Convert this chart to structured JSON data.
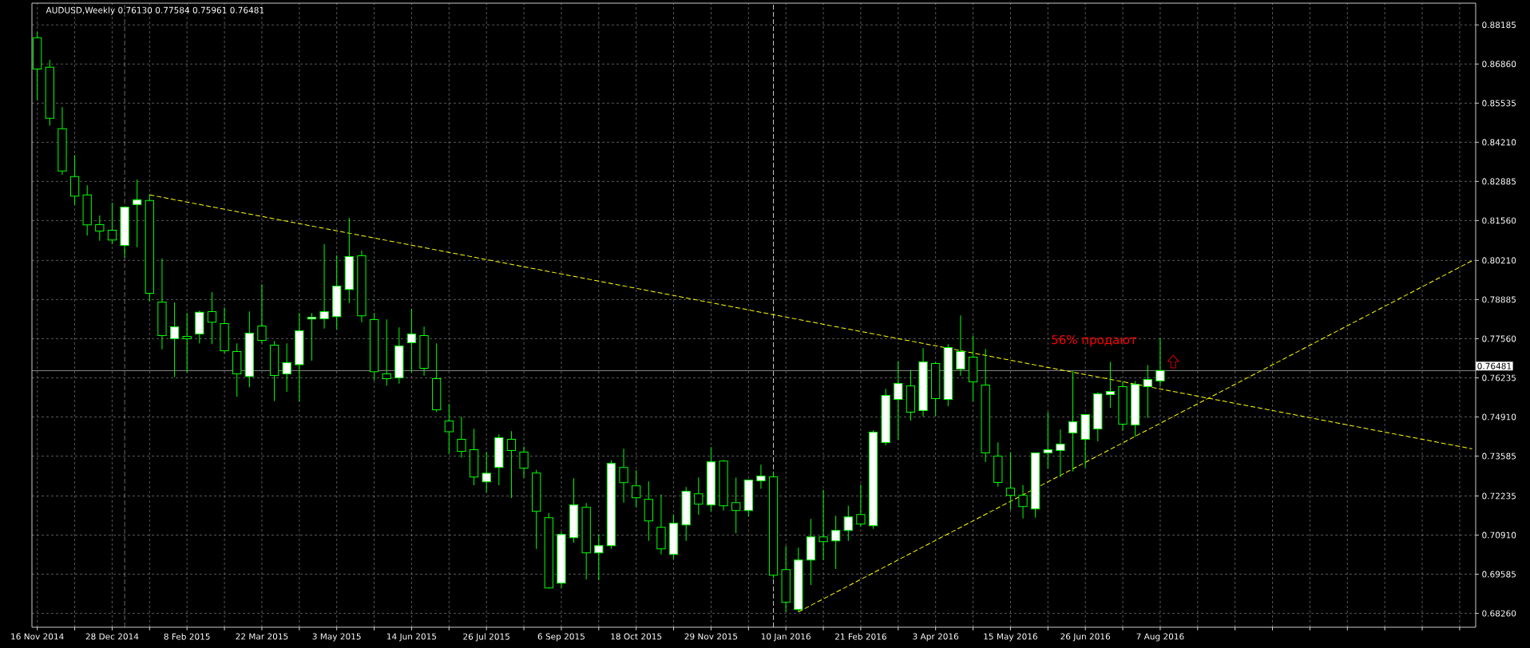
{
  "chart_data": {
    "type": "candlestick",
    "title": "AUDUSD,Weekly 0.76130 0.77584 0.75961 0.76481",
    "color": "#00ff00",
    "x": [
      "2014-11-16",
      "2014-11-23",
      "2014-11-30",
      "2014-12-07",
      "2014-12-14",
      "2014-12-21",
      "2014-12-28",
      "2015-01-04",
      "2015-01-11",
      "2015-01-18",
      "2015-01-25",
      "2015-02-01",
      "2015-02-08",
      "2015-02-15",
      "2015-02-22",
      "2015-03-01",
      "2015-03-08",
      "2015-03-15",
      "2015-03-22",
      "2015-03-29",
      "2015-04-05",
      "2015-04-12",
      "2015-04-19",
      "2015-04-26",
      "2015-05-03",
      "2015-05-10",
      "2015-05-17",
      "2015-05-24",
      "2015-05-31",
      "2015-06-07",
      "2015-06-14",
      "2015-06-21",
      "2015-06-28",
      "2015-07-05",
      "2015-07-12",
      "2015-07-19",
      "2015-07-26",
      "2015-08-02",
      "2015-08-09",
      "2015-08-16",
      "2015-08-23",
      "2015-08-30",
      "2015-09-06",
      "2015-09-13",
      "2015-09-20",
      "2015-09-27",
      "2015-10-04",
      "2015-10-11",
      "2015-10-18",
      "2015-10-25",
      "2015-11-01",
      "2015-11-08",
      "2015-11-15",
      "2015-11-22",
      "2015-11-29",
      "2015-12-06",
      "2015-12-13",
      "2015-12-20",
      "2015-12-27",
      "2016-01-03",
      "2016-01-10",
      "2016-01-17",
      "2016-01-24",
      "2016-01-31",
      "2016-02-07",
      "2016-02-14",
      "2016-02-21",
      "2016-02-28",
      "2016-03-06",
      "2016-03-13",
      "2016-03-20",
      "2016-03-27",
      "2016-04-03",
      "2016-04-10",
      "2016-04-17",
      "2016-04-24",
      "2016-05-01",
      "2016-05-08",
      "2016-05-15",
      "2016-05-22",
      "2016-05-29",
      "2016-06-05",
      "2016-06-12",
      "2016-06-19",
      "2016-06-26",
      "2016-07-03",
      "2016-07-10",
      "2016-07-17",
      "2016-07-24",
      "2016-07-31",
      "2016-08-07"
    ],
    "ohlc": [
      [
        0.87752,
        0.87951,
        0.85634,
        0.86689
      ],
      [
        0.86752,
        0.87004,
        0.84769,
        0.85021
      ],
      [
        0.8467,
        0.854,
        0.8311,
        0.83236
      ],
      [
        0.83047,
        0.83777,
        0.82091,
        0.82389
      ],
      [
        0.82425,
        0.8275,
        0.81055,
        0.81416
      ],
      [
        0.81425,
        0.81731,
        0.80875,
        0.81208
      ],
      [
        0.81235,
        0.82164,
        0.80758,
        0.80902
      ],
      [
        0.80721,
        0.82019,
        0.80307,
        0.82019
      ],
      [
        0.82101,
        0.82948,
        0.80658,
        0.82263
      ],
      [
        0.82236,
        0.82452,
        0.7882,
        0.79099
      ],
      [
        0.78802,
        0.80271,
        0.77197,
        0.77666
      ],
      [
        0.77558,
        0.78784,
        0.76259,
        0.77963
      ],
      [
        0.77639,
        0.78432,
        0.76413,
        0.77558
      ],
      [
        0.7772,
        0.78513,
        0.77404,
        0.78459
      ],
      [
        0.78477,
        0.79135,
        0.77378,
        0.78116
      ],
      [
        0.78071,
        0.78621,
        0.77062,
        0.77152
      ],
      [
        0.77125,
        0.77404,
        0.75601,
        0.76368
      ],
      [
        0.76278,
        0.78486,
        0.75917,
        0.77747
      ],
      [
        0.7799,
        0.79405,
        0.77404,
        0.77503
      ],
      [
        0.77341,
        0.77485,
        0.7545,
        0.76313
      ],
      [
        0.76368,
        0.77405,
        0.75764,
        0.76746
      ],
      [
        0.76683,
        0.78432,
        0.75439,
        0.77828
      ],
      [
        0.78225,
        0.78432,
        0.76818,
        0.78288
      ],
      [
        0.78234,
        0.80758,
        0.779,
        0.78477
      ],
      [
        0.78306,
        0.80379,
        0.77873,
        0.79343
      ],
      [
        0.79225,
        0.8165,
        0.78766,
        0.80343
      ],
      [
        0.8037,
        0.80541,
        0.78117,
        0.78333
      ],
      [
        0.78207,
        0.78432,
        0.76143,
        0.7644
      ],
      [
        0.76368,
        0.78216,
        0.75971,
        0.76206
      ],
      [
        0.76233,
        0.77945,
        0.76035,
        0.77314
      ],
      [
        0.77423,
        0.78576,
        0.76413,
        0.7772
      ],
      [
        0.77666,
        0.77972,
        0.76305,
        0.76557
      ],
      [
        0.76206,
        0.77405,
        0.75088,
        0.75151
      ],
      [
        0.74772,
        0.75349,
        0.73664,
        0.74412
      ],
      [
        0.7415,
        0.74917,
        0.73529,
        0.73745
      ],
      [
        0.73799,
        0.74511,
        0.726,
        0.72879
      ],
      [
        0.72717,
        0.73727,
        0.72357,
        0.73006
      ],
      [
        0.73204,
        0.74322,
        0.726,
        0.74204
      ],
      [
        0.7415,
        0.7443,
        0.72167,
        0.73772
      ],
      [
        0.73718,
        0.73907,
        0.72852,
        0.73177
      ],
      [
        0.73015,
        0.73123,
        0.70446,
        0.71717
      ],
      [
        0.71501,
        0.71663,
        0.691,
        0.69121
      ],
      [
        0.69283,
        0.71023,
        0.6913,
        0.70932
      ],
      [
        0.70824,
        0.72835,
        0.70653,
        0.71933
      ],
      [
        0.71852,
        0.71996,
        0.69409,
        0.70311
      ],
      [
        0.70311,
        0.70932,
        0.69382,
        0.70554
      ],
      [
        0.70554,
        0.73447,
        0.70446,
        0.73339
      ],
      [
        0.73204,
        0.73835,
        0.72014,
        0.7269
      ],
      [
        0.72582,
        0.73105,
        0.71852,
        0.72177
      ],
      [
        0.72123,
        0.72727,
        0.70716,
        0.71392
      ],
      [
        0.71176,
        0.72285,
        0.70257,
        0.70446
      ],
      [
        0.70257,
        0.71609,
        0.70094,
        0.71311
      ],
      [
        0.71257,
        0.72537,
        0.70716,
        0.72393
      ],
      [
        0.72312,
        0.72862,
        0.716,
        0.7196
      ],
      [
        0.71933,
        0.73889,
        0.71717,
        0.73393
      ],
      [
        0.7342,
        0.73456,
        0.71744,
        0.71906
      ],
      [
        0.72014,
        0.72853,
        0.70969,
        0.71744
      ],
      [
        0.71744,
        0.72772,
        0.71546,
        0.72772
      ],
      [
        0.72745,
        0.73295,
        0.72475,
        0.72907
      ],
      [
        0.7288,
        0.73042,
        0.6945,
        0.69554
      ],
      [
        0.69743,
        0.70536,
        0.6831,
        0.68634
      ],
      [
        0.68391,
        0.70482,
        0.6831,
        0.70068
      ],
      [
        0.70068,
        0.71456,
        0.6922,
        0.70852
      ],
      [
        0.70852,
        0.72447,
        0.70068,
        0.7069
      ],
      [
        0.70716,
        0.71564,
        0.69761,
        0.71068
      ],
      [
        0.71068,
        0.71906,
        0.70716,
        0.71528
      ],
      [
        0.71609,
        0.72618,
        0.71203,
        0.71284
      ],
      [
        0.7123,
        0.74457,
        0.71122,
        0.74394
      ],
      [
        0.74043,
        0.75863,
        0.73952,
        0.75638
      ],
      [
        0.75503,
        0.76801,
        0.74142,
        0.76044
      ],
      [
        0.75963,
        0.76503,
        0.74791,
        0.7507
      ],
      [
        0.75124,
        0.77242,
        0.74926,
        0.76774
      ],
      [
        0.7672,
        0.76774,
        0.74935,
        0.7553
      ],
      [
        0.75503,
        0.77378,
        0.75277,
        0.7726
      ],
      [
        0.7653,
        0.78351,
        0.76305,
        0.77125
      ],
      [
        0.76936,
        0.77666,
        0.7544,
        0.76098
      ],
      [
        0.75989,
        0.77215,
        0.73385,
        0.73691
      ],
      [
        0.73583,
        0.74051,
        0.72546,
        0.72691
      ],
      [
        0.72501,
        0.73718,
        0.71771,
        0.72258
      ],
      [
        0.72258,
        0.72609,
        0.71474,
        0.71879
      ],
      [
        0.71798,
        0.73691,
        0.71501,
        0.73691
      ],
      [
        0.73691,
        0.75079,
        0.73168,
        0.73799
      ],
      [
        0.73772,
        0.74484,
        0.72871,
        0.73988
      ],
      [
        0.74367,
        0.76476,
        0.73069,
        0.74746
      ],
      [
        0.74151,
        0.74989,
        0.73204,
        0.74989
      ],
      [
        0.74502,
        0.75746,
        0.74088,
        0.75692
      ],
      [
        0.75665,
        0.76774,
        0.75223,
        0.75773
      ],
      [
        0.75935,
        0.76098,
        0.74448,
        0.74664
      ],
      [
        0.74637,
        0.76125,
        0.74232,
        0.76017
      ],
      [
        0.75935,
        0.76666,
        0.74881,
        0.76179
      ],
      [
        0.7613,
        0.77584,
        0.75961,
        0.76481
      ]
    ],
    "series": [
      {
        "type": "line",
        "x": [
          "2015-01-18",
          "2017-01-29"
        ],
        "values": [
          0.8243,
          0.7383
        ],
        "color": "#ffff00",
        "line_style": "dashed"
      },
      {
        "type": "line",
        "x": [
          "2016-01-17",
          "2017-01-29"
        ],
        "values": [
          0.6831,
          0.802
        ],
        "color": "#ffff00",
        "line_style": "dashed"
      }
    ],
    "marker": "none",
    "xlim": [
      "2014-11-13",
      "2017-01-31"
    ],
    "ylim": [
      0.6779,
      0.8892
    ],
    "xticks": [
      {
        "value": "2014-11-16",
        "label": "16 Nov 2014"
      },
      {
        "value": "2014-12-07",
        "label": null
      },
      {
        "value": "2014-12-28",
        "label": "28 Dec 2014"
      },
      {
        "value": "2015-01-18",
        "label": null
      },
      {
        "value": "2015-02-08",
        "label": "8 Feb 2015"
      },
      {
        "value": "2015-03-01",
        "label": null
      },
      {
        "value": "2015-03-22",
        "label": "22 Mar 2015"
      },
      {
        "value": "2015-04-12",
        "label": null
      },
      {
        "value": "2015-05-03",
        "label": "3 May 2015"
      },
      {
        "value": "2015-05-24",
        "label": null
      },
      {
        "value": "2015-06-14",
        "label": "14 Jun 2015"
      },
      {
        "value": "2015-07-05",
        "label": null
      },
      {
        "value": "2015-07-26",
        "label": "26 Jul 2015"
      },
      {
        "value": "2015-08-16",
        "label": null
      },
      {
        "value": "2015-09-06",
        "label": "6 Sep 2015"
      },
      {
        "value": "2015-09-27",
        "label": null
      },
      {
        "value": "2015-10-18",
        "label": "18 Oct 2015"
      },
      {
        "value": "2015-11-08",
        "label": null
      },
      {
        "value": "2015-11-29",
        "label": "29 Nov 2015"
      },
      {
        "value": "2015-12-20",
        "label": null
      },
      {
        "value": "2016-01-10",
        "label": "10 Jan 2016"
      },
      {
        "value": "2016-01-31",
        "label": null
      },
      {
        "value": "2016-02-21",
        "label": "21 Feb 2016"
      },
      {
        "value": "2016-03-13",
        "label": null
      },
      {
        "value": "2016-04-03",
        "label": "3 Apr 2016"
      },
      {
        "value": "2016-04-24",
        "label": null
      },
      {
        "value": "2016-05-15",
        "label": "15 May 2016"
      },
      {
        "value": "2016-06-05",
        "label": null
      },
      {
        "value": "2016-06-26",
        "label": "26 Jun 2016"
      },
      {
        "value": "2016-07-17",
        "label": null
      },
      {
        "value": "2016-08-07",
        "label": "7 Aug 2016"
      },
      {
        "value": "2016-08-28",
        "label": null
      },
      {
        "value": "2016-09-18",
        "label": null
      },
      {
        "value": "2016-10-09",
        "label": null
      },
      {
        "value": "2016-10-30",
        "label": null
      },
      {
        "value": "2016-11-20",
        "label": null
      },
      {
        "value": "2016-12-11",
        "label": null
      },
      {
        "value": "2017-01-01",
        "label": null
      },
      {
        "value": "2017-01-22",
        "label": null
      }
    ],
    "yticks": [
      0.88185,
      {
        "value": 0.8686,
        "label": "0.86860"
      },
      0.85535,
      {
        "value": 0.8421,
        "label": "0.84210"
      },
      0.82885,
      {
        "value": 0.8156,
        "label": "0.81560"
      },
      {
        "value": 0.8021,
        "label": "0.80210"
      },
      0.78885,
      {
        "value": 0.7756,
        "label": "0.77560"
      },
      0.76235,
      {
        "value": 0.7491,
        "label": "0.74910"
      },
      0.73585,
      0.72235,
      {
        "value": 0.7091,
        "label": "0.70910"
      },
      0.69585,
      {
        "value": 0.6826,
        "label": "0.68260"
      }
    ],
    "grid": true,
    "ref_lines": [
      {
        "axis": "y",
        "value": 0.76481,
        "label": "0.76481",
        "color": "#c0c0c0",
        "line_style": "solid"
      },
      {
        "axis": "x",
        "value": "2015-01-04",
        "color": "#ffffff",
        "line_style": "dashed"
      },
      {
        "axis": "x",
        "value": "2016-01-03",
        "color": "#ffffff",
        "line_style": "dashed"
      }
    ],
    "annotations": [
      "56% продают"
    ]
  }
}
